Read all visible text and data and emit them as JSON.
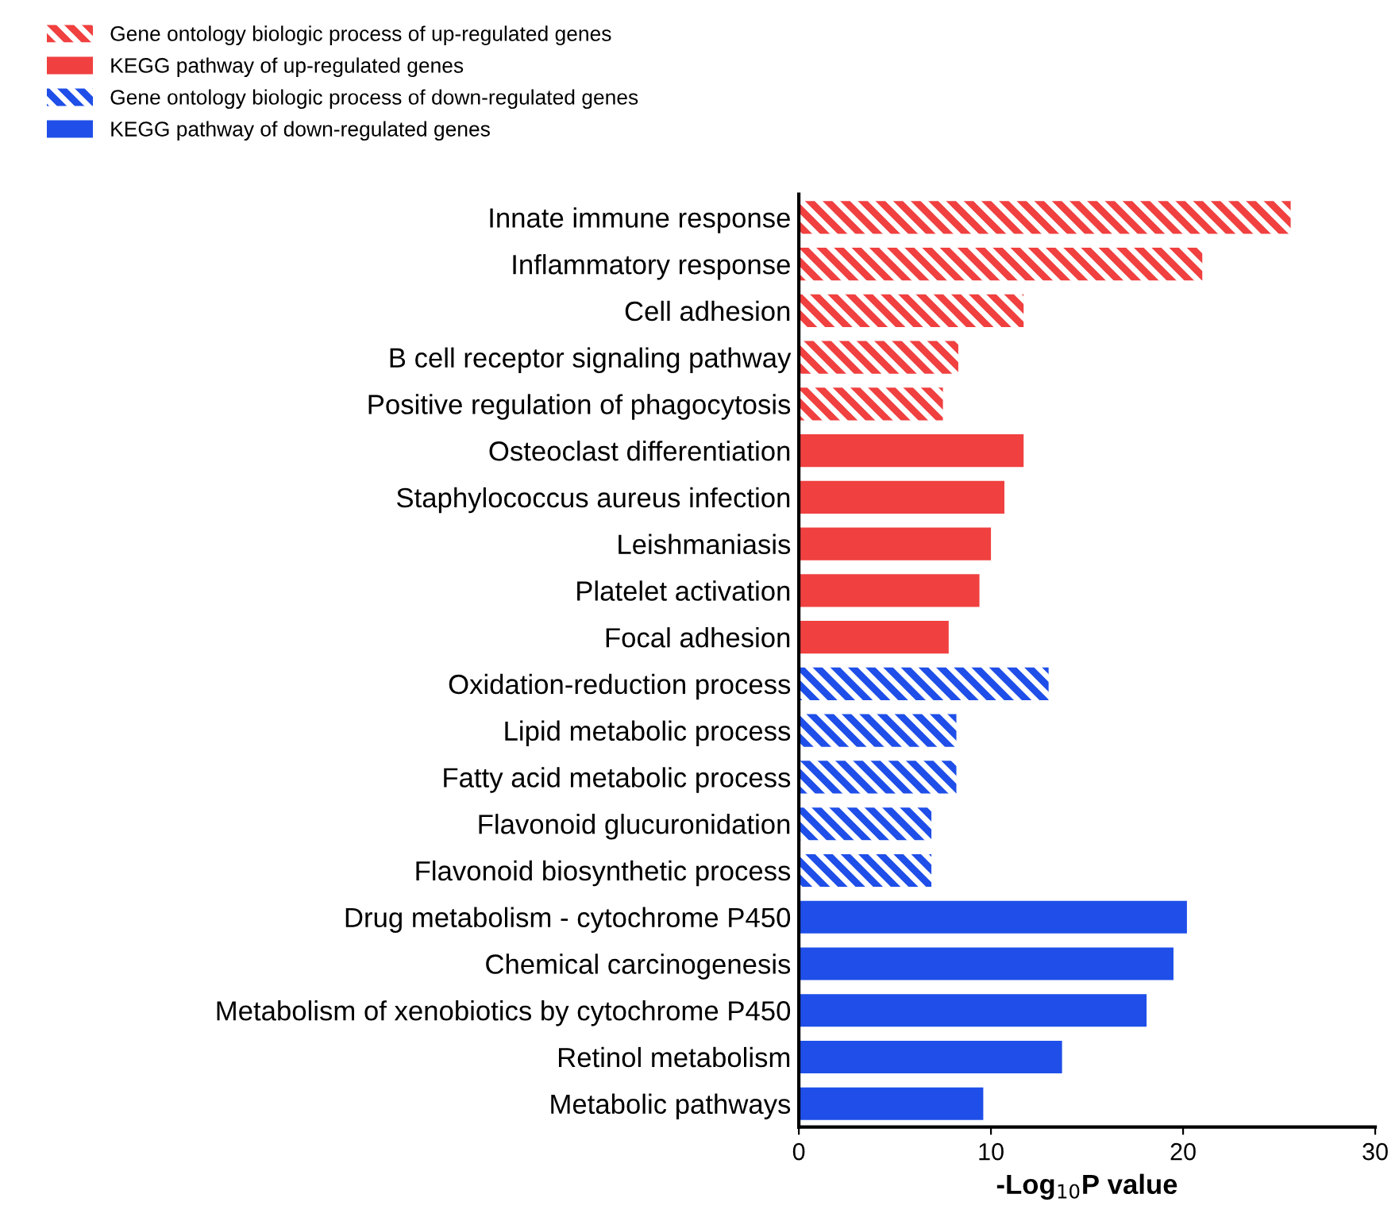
{
  "chart_data": {
    "type": "bar",
    "orientation": "horizontal",
    "xlabel": "-Log$_{10}$P value",
    "categories": [
      "Innate immune response",
      "Inflammatory response",
      "Cell adhesion",
      "B cell receptor signaling pathway",
      "Positive regulation of phagocytosis",
      "Osteoclast differentiation",
      "Staphylococcus aureus infection",
      "Leishmaniasis",
      "Platelet activation",
      "Focal adhesion",
      "Oxidation-reduction process",
      "Lipid metabolic process",
      "Fatty acid metabolic process",
      "Flavonoid glucuronidation",
      "Flavonoid biosynthetic process",
      "Drug metabolism - cytochrome P450",
      "Chemical carcinogenesis",
      "Metabolism of xenobiotics by cytochrome P450",
      "Retinol metabolism",
      "Metabolic pathways"
    ],
    "series": [
      {
        "name": "Gene ontology biologic process of up-regulated genes",
        "color": "#f04040",
        "values": [
          25.6,
          21.0,
          11.7,
          8.3,
          7.5,
          null,
          null,
          null,
          null,
          null,
          null,
          null,
          null,
          null,
          null,
          null,
          null,
          null,
          null,
          null
        ]
      },
      {
        "name": "KEGG pathway of up-regulated genes",
        "color": "#f04040",
        "values": [
          null,
          null,
          null,
          null,
          null,
          11.7,
          10.7,
          10.0,
          9.4,
          7.8,
          null,
          null,
          null,
          null,
          null,
          null,
          null,
          null,
          null,
          null
        ]
      },
      {
        "name": "Gene ontology biologic process of down-regulated genes",
        "color": "#1f4fe8",
        "values": [
          null,
          null,
          null,
          null,
          null,
          null,
          null,
          null,
          null,
          null,
          13.0,
          8.2,
          8.2,
          6.9,
          6.9,
          null,
          null,
          null,
          null,
          null
        ]
      },
      {
        "name": "KEGG pathway of down-regulated genes",
        "color": "#1f4fe8",
        "values": [
          null,
          null,
          null,
          null,
          null,
          null,
          null,
          null,
          null,
          null,
          null,
          null,
          null,
          null,
          null,
          20.2,
          19.5,
          18.1,
          13.7,
          9.6
        ]
      }
    ],
    "xlim": [
      0,
      30
    ],
    "xticks": [
      0,
      10,
      20,
      30
    ],
    "grid": false,
    "legend": "top left"
  }
}
